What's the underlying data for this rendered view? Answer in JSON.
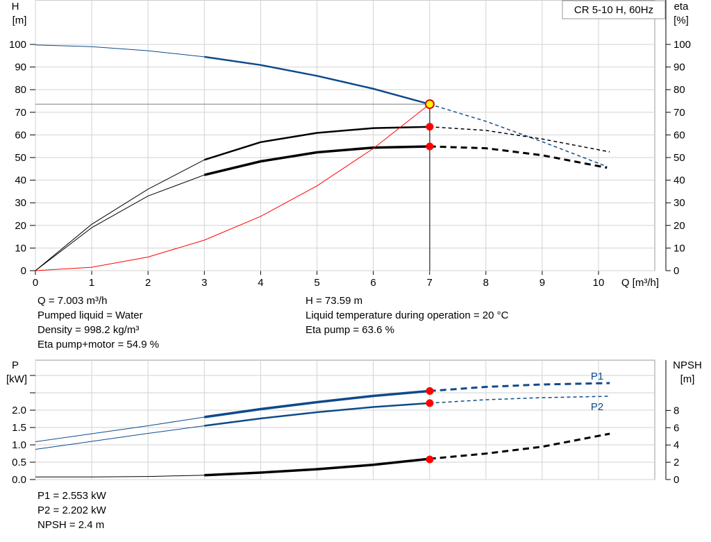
{
  "chart_data": [
    {
      "type": "line",
      "title": "CR 5-10 H, 60Hz",
      "xlabel": "Q [m³/h]",
      "ylabel_left": [
        "H",
        "[m]"
      ],
      "ylabel_right": [
        "eta",
        "[%]"
      ],
      "xlim": [
        0,
        11
      ],
      "ylim": [
        0,
        100
      ],
      "x_ticks": [
        0,
        1,
        2,
        3,
        4,
        5,
        6,
        7,
        8,
        9,
        10
      ],
      "y_ticks": [
        0,
        10,
        20,
        30,
        40,
        50,
        60,
        70,
        80,
        90,
        100
      ],
      "grid": true,
      "duty_point": {
        "x": 7.003,
        "y": 73.59
      },
      "series": [
        {
          "id": "head",
          "color": "#0d4a8a",
          "style": "thin-solid-dashed",
          "points": [
            [
              0,
              99.8
            ],
            [
              1,
              99
            ],
            [
              2,
              97.2
            ],
            [
              3,
              94.5
            ],
            [
              4,
              90.9
            ],
            [
              5,
              86.1
            ],
            [
              6,
              80.4
            ],
            [
              7,
              73.6
            ],
            [
              8,
              66
            ],
            [
              9,
              57
            ],
            [
              10.15,
              46
            ]
          ]
        },
        {
          "id": "eta-pump",
          "color": "#000000",
          "style": "thin-solid-dashed",
          "points": [
            [
              0,
              0
            ],
            [
              1,
              20.5
            ],
            [
              2,
              36
            ],
            [
              3,
              49
            ],
            [
              4,
              56.8
            ],
            [
              5,
              60.9
            ],
            [
              6,
              63
            ],
            [
              7,
              63.6
            ],
            [
              8,
              62
            ],
            [
              9,
              58.2
            ],
            [
              10.2,
              52.5
            ]
          ]
        },
        {
          "id": "eta-pump-motor",
          "color": "#000000",
          "style": "thick-solid-dashed",
          "points": [
            [
              0,
              0
            ],
            [
              1,
              19
            ],
            [
              2,
              33
            ],
            [
              3,
              42.3
            ],
            [
              4,
              48.3
            ],
            [
              5,
              52.3
            ],
            [
              6,
              54.4
            ],
            [
              7,
              54.9
            ],
            [
              8,
              54.1
            ],
            [
              9,
              51
            ],
            [
              10.15,
              45.5
            ]
          ]
        },
        {
          "id": "system-curve",
          "color": "#ff0000",
          "style": "thin",
          "points": [
            [
              0,
              0
            ],
            [
              1,
              1.5
            ],
            [
              2,
              6
            ],
            [
              3,
              13.5
            ],
            [
              4,
              24
            ],
            [
              5,
              37.5
            ],
            [
              6,
              54
            ],
            [
              7,
              73.6
            ]
          ]
        }
      ],
      "markers": [
        {
          "x": 7.003,
          "y": 63.6
        },
        {
          "x": 7.003,
          "y": 54.9
        }
      ]
    },
    {
      "type": "line",
      "ylabel_left": [
        "P",
        "[kW]"
      ],
      "ylabel_right": [
        "NPSH",
        "[m]"
      ],
      "xlim": [
        0,
        11
      ],
      "ylim_left": [
        0,
        3.1
      ],
      "ylim_right": [
        0,
        12.4
      ],
      "y_ticks_left": [
        0,
        0.5,
        1,
        1.5,
        2
      ],
      "y_tick_labels_left": [
        "0.0",
        "0.5",
        "1.0",
        "1.5",
        "2.0"
      ],
      "y_ticks_right": [
        0,
        2,
        4,
        6,
        8
      ],
      "grid": true,
      "series": [
        {
          "id": "P1",
          "name": "P1",
          "color": "#0d4a8a",
          "style": "thick-solid-dashed",
          "points": [
            [
              0,
              1.09
            ],
            [
              1,
              1.32
            ],
            [
              2,
              1.55
            ],
            [
              3,
              1.8
            ],
            [
              4,
              2.03
            ],
            [
              5,
              2.23
            ],
            [
              6,
              2.41
            ],
            [
              7,
              2.553
            ],
            [
              8,
              2.67
            ],
            [
              9,
              2.74
            ],
            [
              10.2,
              2.78
            ]
          ]
        },
        {
          "id": "P2",
          "name": "P2",
          "color": "#0d4a8a",
          "style": "thin-solid-dashed",
          "points": [
            [
              0,
              0.87
            ],
            [
              1,
              1.1
            ],
            [
              2,
              1.33
            ],
            [
              3,
              1.55
            ],
            [
              4,
              1.76
            ],
            [
              5,
              1.94
            ],
            [
              6,
              2.09
            ],
            [
              7,
              2.202
            ],
            [
              8,
              2.3
            ],
            [
              9,
              2.36
            ],
            [
              10.2,
              2.4
            ]
          ]
        },
        {
          "id": "NPSH",
          "color": "#000000",
          "style": "thick-solid-dashed",
          "axis": "right",
          "points": [
            [
              0,
              0.3
            ],
            [
              1,
              0.3
            ],
            [
              2,
              0.35
            ],
            [
              3,
              0.5
            ],
            [
              4,
              0.8
            ],
            [
              5,
              1.2
            ],
            [
              6,
              1.7
            ],
            [
              7,
              2.4
            ],
            [
              8,
              3
            ],
            [
              9,
              3.8
            ],
            [
              10.2,
              5.3
            ]
          ]
        }
      ],
      "markers": [
        {
          "x": 7.003,
          "y": 2.553
        },
        {
          "x": 7.003,
          "y": 2.202
        },
        {
          "x": 7.003,
          "y": 0.6
        }
      ]
    }
  ],
  "info": {
    "q": "Q = 7.003 m³/h",
    "pumped_liquid": "Pumped liquid = Water",
    "density": "Density = 998.2 kg/m³",
    "eta_pump_motor": "Eta pump+motor = 54.9 %",
    "h": "H = 73.59 m",
    "liquid_temp": "Liquid temperature during operation = 20 °C",
    "eta_pump": "Eta pump = 63.6 %",
    "p1": "P1 = 2.553 kW",
    "p2": "P2 = 2.202 kW",
    "npsh": "NPSH = 2.4 m"
  }
}
